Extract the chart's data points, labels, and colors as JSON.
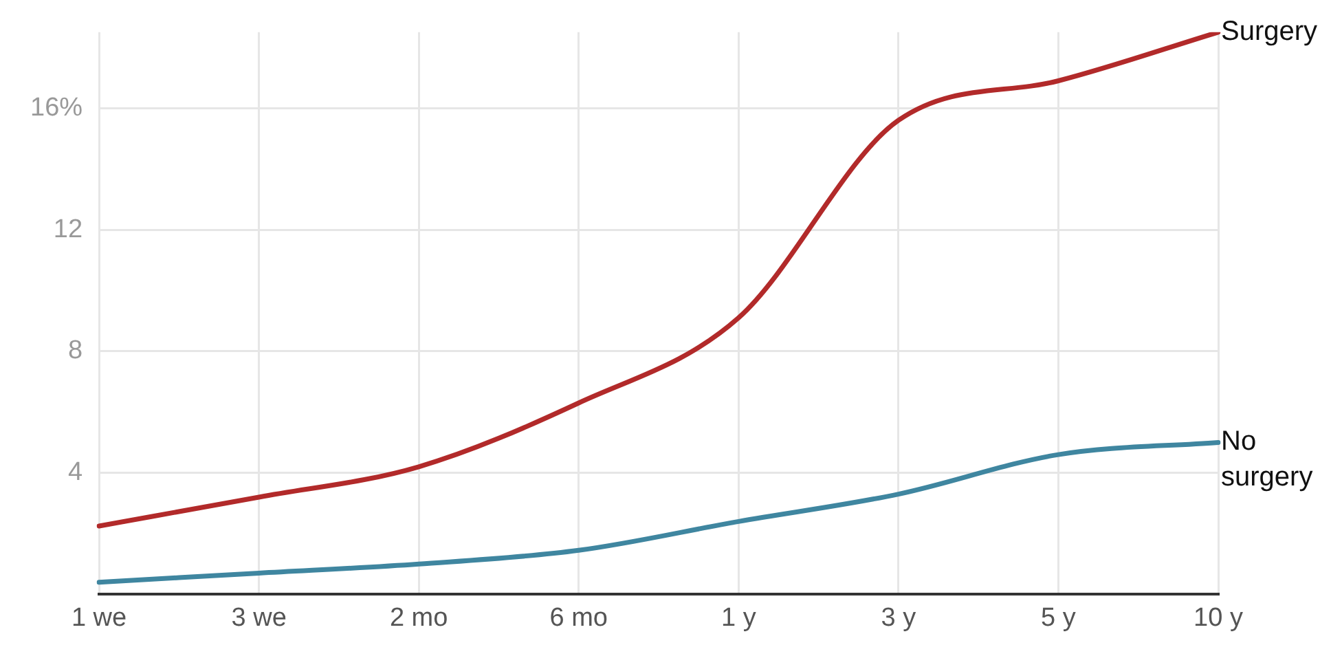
{
  "chart_data": {
    "type": "line",
    "categories": [
      "1 we",
      "3 we",
      "2 mo",
      "6 mo",
      "1 y",
      "3 y",
      "5 y",
      "10 y"
    ],
    "ylim": [
      0,
      18.5
    ],
    "yticks": [
      4,
      8,
      12,
      {
        "value": 16,
        "label": "16%"
      }
    ],
    "grid": true,
    "legend": false,
    "marker": "none",
    "series": [
      {
        "name": "Surgery",
        "color": "#b22a2a",
        "values": [
          2.25,
          3.2,
          4.2,
          6.3,
          9.1,
          15.6,
          16.9,
          18.5
        ]
      },
      {
        "name": "No surgery",
        "color": "#3f86a0",
        "values": [
          0.4,
          0.7,
          1.0,
          1.45,
          2.4,
          3.3,
          4.6,
          5.0
        ]
      }
    ]
  }
}
